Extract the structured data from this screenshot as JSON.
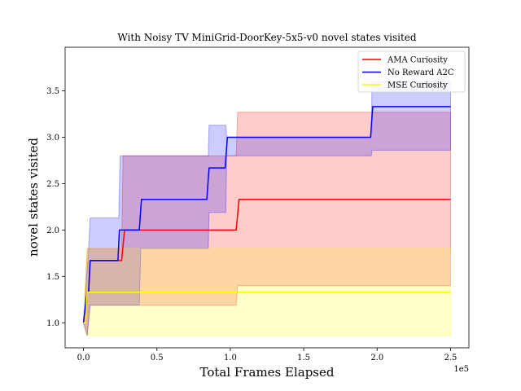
{
  "chart_data": {
    "type": "line",
    "title": "With Noisy TV MiniGrid-DoorKey-5x5-v0 novel states visited",
    "xlabel": "Total Frames Elapsed",
    "ylabel": "novel states visited",
    "x_offset_label": "1e5",
    "xlim": [
      -12500,
      262500
    ],
    "ylim": [
      0.73,
      3.97
    ],
    "x_ticks": [
      0,
      50000,
      100000,
      150000,
      200000,
      250000
    ],
    "x_tick_labels": [
      "0.0",
      "0.5",
      "1.0",
      "1.5",
      "2.0",
      "2.5"
    ],
    "y_ticks": [
      1.0,
      1.5,
      2.0,
      2.5,
      3.0,
      3.5
    ],
    "y_tick_labels": [
      "1.0",
      "1.5",
      "2.0",
      "2.5",
      "3.0",
      "3.5"
    ],
    "legend_position": "top-right",
    "series": [
      {
        "name": "AMA Curiosity",
        "color": "#ff0000",
        "band_color": "#ff0000",
        "band_opacity": 0.2,
        "mean": [
          [
            0,
            1.0
          ],
          [
            1500,
            1.0
          ],
          [
            2500,
            1.33
          ],
          [
            3500,
            1.33
          ],
          [
            4500,
            1.67
          ],
          [
            26000,
            1.67
          ],
          [
            28000,
            2.0
          ],
          [
            104000,
            2.0
          ],
          [
            106000,
            2.33
          ],
          [
            250000,
            2.33
          ]
        ],
        "upper": [
          [
            0,
            1.0
          ],
          [
            2500,
            1.8
          ],
          [
            26000,
            1.8
          ],
          [
            27000,
            2.8
          ],
          [
            104000,
            2.8
          ],
          [
            105000,
            3.27
          ],
          [
            250000,
            3.27
          ]
        ],
        "lower": [
          [
            0,
            1.0
          ],
          [
            2500,
            0.86
          ],
          [
            4500,
            1.19
          ],
          [
            26000,
            1.19
          ],
          [
            27000,
            1.19
          ],
          [
            104000,
            1.19
          ],
          [
            105000,
            1.4
          ],
          [
            250000,
            1.4
          ]
        ]
      },
      {
        "name": "No Reward A2C",
        "color": "#0000ff",
        "band_color": "#0000ff",
        "band_opacity": 0.2,
        "mean": [
          [
            0,
            1.0
          ],
          [
            2500,
            1.33
          ],
          [
            3500,
            1.33
          ],
          [
            4500,
            1.67
          ],
          [
            23500,
            1.67
          ],
          [
            24500,
            2.0
          ],
          [
            38000,
            2.0
          ],
          [
            39500,
            2.33
          ],
          [
            84000,
            2.33
          ],
          [
            85500,
            2.67
          ],
          [
            96500,
            2.67
          ],
          [
            98000,
            3.0
          ],
          [
            195500,
            3.0
          ],
          [
            197000,
            3.33
          ],
          [
            250000,
            3.33
          ]
        ],
        "upper": [
          [
            0,
            1.0
          ],
          [
            3500,
            1.8
          ],
          [
            4500,
            2.13
          ],
          [
            24000,
            2.13
          ],
          [
            25000,
            2.8
          ],
          [
            85000,
            2.8
          ],
          [
            85500,
            3.13
          ],
          [
            97000,
            3.13
          ],
          [
            97500,
            3.0
          ],
          [
            196000,
            3.0
          ],
          [
            196500,
            3.6
          ],
          [
            250000,
            3.6
          ]
        ],
        "lower": [
          [
            0,
            1.0
          ],
          [
            2500,
            0.86
          ],
          [
            4500,
            1.19
          ],
          [
            38000,
            1.19
          ],
          [
            39000,
            1.8
          ],
          [
            85000,
            1.8
          ],
          [
            85500,
            2.19
          ],
          [
            97000,
            2.19
          ],
          [
            97500,
            2.8
          ],
          [
            196000,
            2.8
          ],
          [
            196500,
            2.86
          ],
          [
            250000,
            2.86
          ]
        ]
      },
      {
        "name": "MSE Curiosity",
        "color": "#ffff00",
        "band_color": "#ffff00",
        "band_opacity": 0.2,
        "mean": [
          [
            0,
            1.0
          ],
          [
            1500,
            1.0
          ],
          [
            2500,
            1.33
          ],
          [
            250000,
            1.33
          ]
        ],
        "upper": [
          [
            0,
            1.0
          ],
          [
            2500,
            1.8
          ],
          [
            250000,
            1.8
          ]
        ],
        "lower": [
          [
            0,
            1.0
          ],
          [
            2500,
            0.86
          ],
          [
            250000,
            0.86
          ]
        ]
      }
    ]
  }
}
